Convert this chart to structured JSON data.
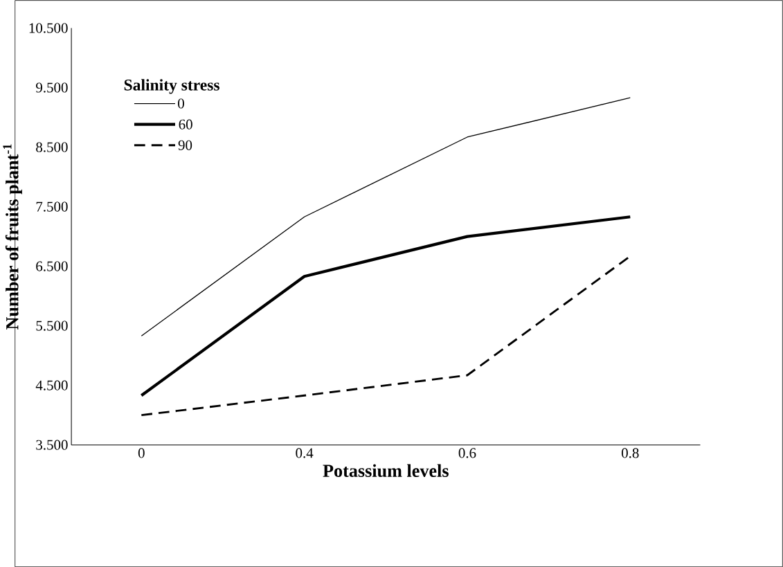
{
  "chart_data": {
    "type": "line",
    "xlabel": "Potassium levels",
    "ylabel": "Number of fruits plant$^{-1}$",
    "legend_title": "Salinity stress",
    "legend": "top left",
    "categories": [
      "0",
      "0.4",
      "0.6",
      "0.8"
    ],
    "series": [
      {
        "name": "0",
        "color": "#000000",
        "line_style": "solid",
        "values": [
          5.33,
          7.33,
          8.67,
          9.33
        ]
      },
      {
        "name": "60",
        "color": "#000000",
        "line_style": "solid",
        "values": [
          4.33,
          6.33,
          7.0,
          7.33
        ]
      },
      {
        "name": "90",
        "color": "#000000",
        "line_style": "dashed",
        "values": [
          4.0,
          4.33,
          4.67,
          6.67
        ]
      }
    ],
    "ylim": [
      3.5,
      10.5
    ],
    "yticks": [
      {
        "value": 3.5,
        "label": "3.500"
      },
      {
        "value": 4.5,
        "label": "4.500"
      },
      {
        "value": 5.5,
        "label": "5.500"
      },
      {
        "value": 6.5,
        "label": "6.500"
      },
      {
        "value": 7.5,
        "label": "7.500"
      },
      {
        "value": 8.5,
        "label": "8.500"
      },
      {
        "value": 9.5,
        "label": "9.500"
      },
      {
        "value": 10.5,
        "label": "10.500"
      }
    ],
    "grid": false,
    "marker": "none"
  }
}
